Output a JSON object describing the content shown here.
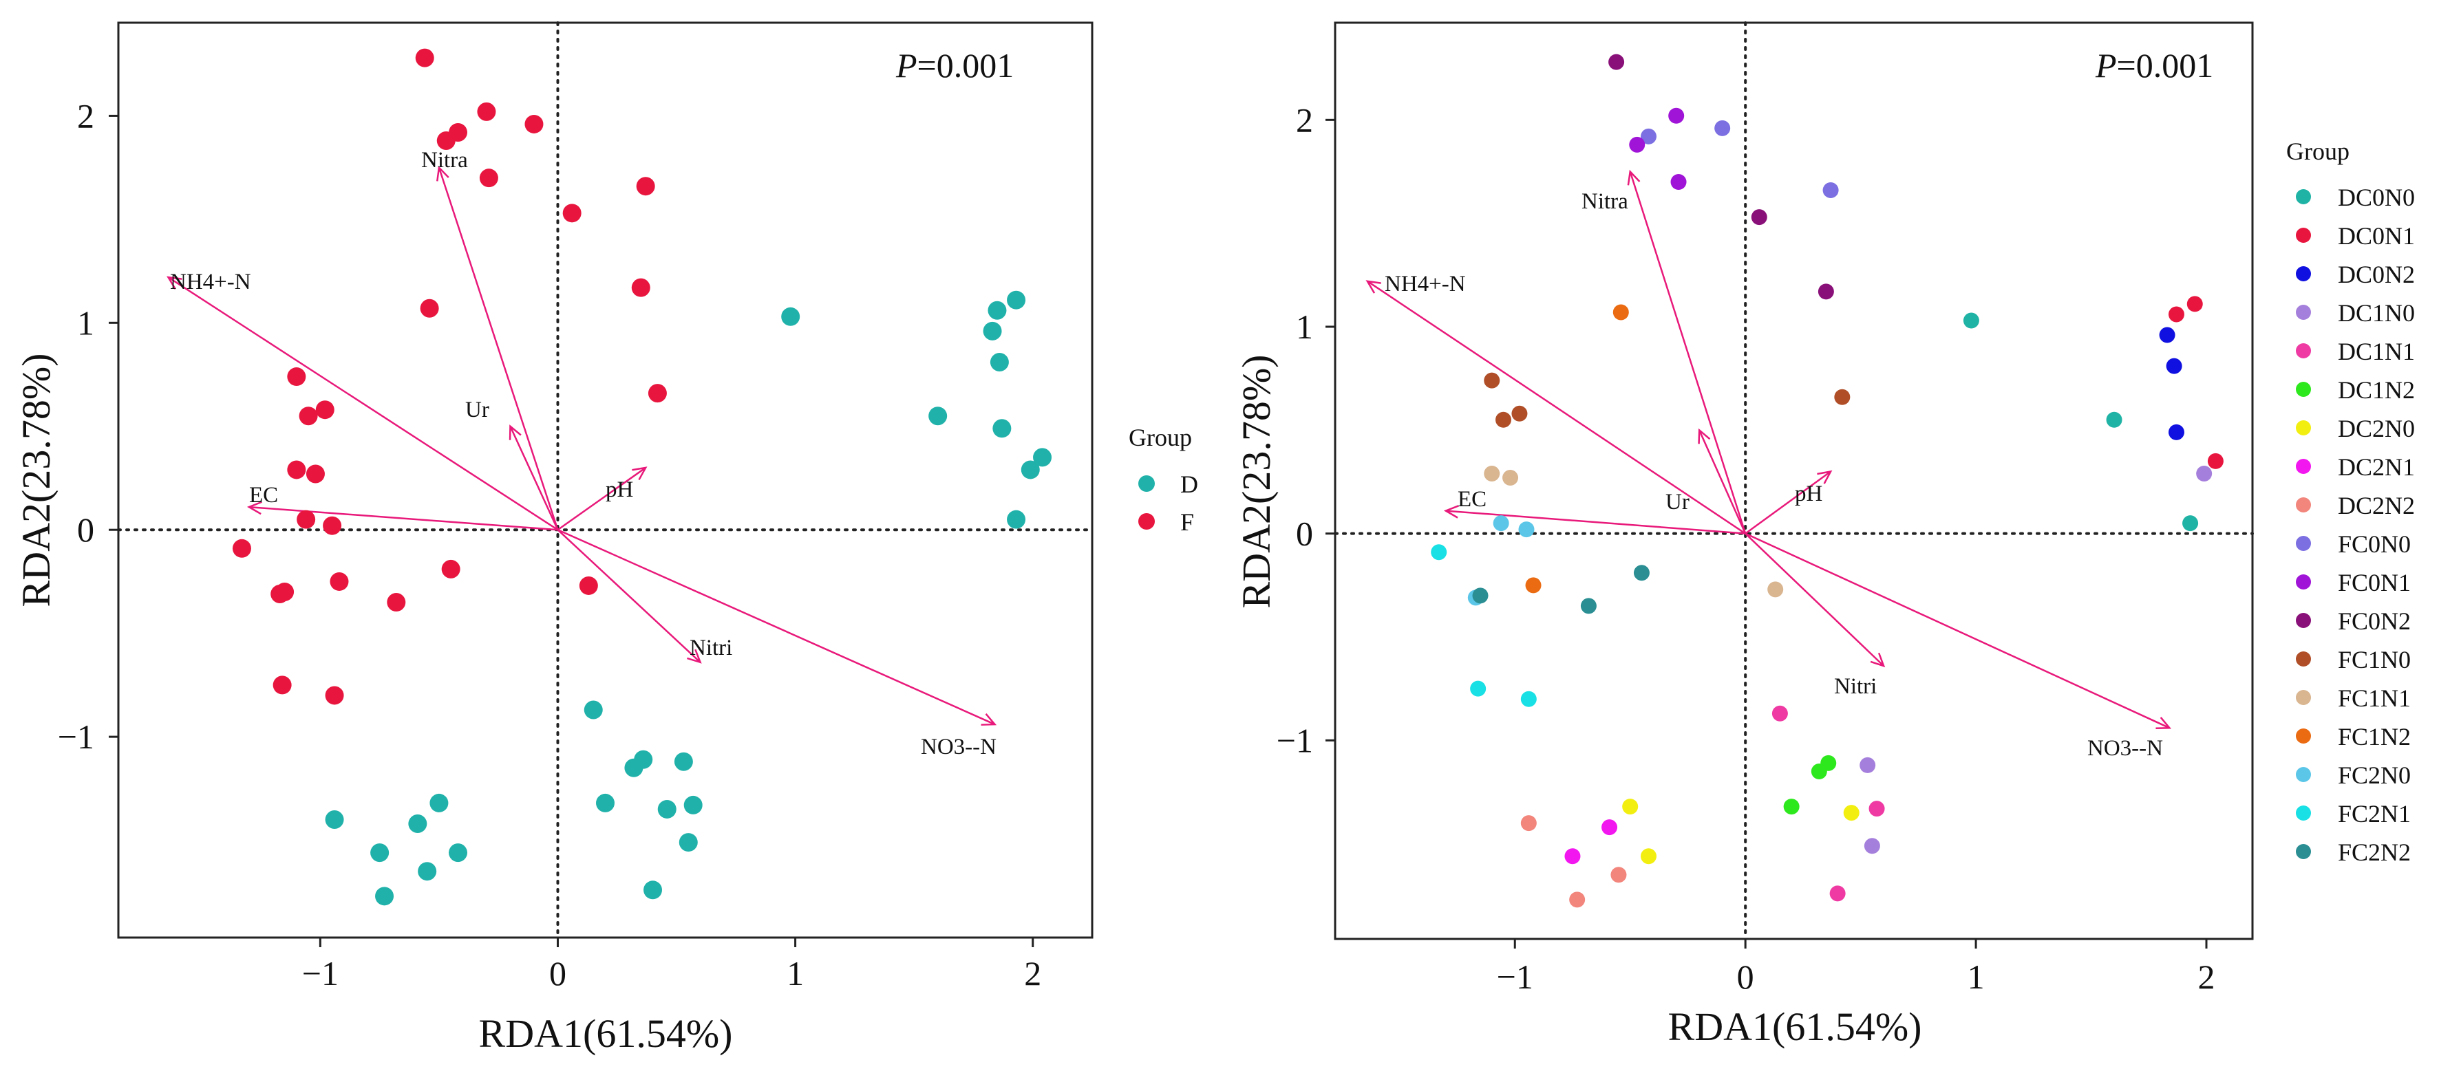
{
  "chart_data": [
    {
      "type": "scatter",
      "subtype": "RDA biplot",
      "title": "",
      "xlabel": "RDA1(61.54%)",
      "ylabel": "RDA2(23.78%)",
      "p_label_italic": "P",
      "p_label_rest": "=0.001",
      "xlim": [
        -1.85,
        2.25
      ],
      "ylim": [
        -1.97,
        2.45
      ],
      "xticks": [
        -1,
        0,
        1,
        2
      ],
      "yticks": [
        -1,
        0,
        1,
        2
      ],
      "xtick_labels": [
        "−1",
        "0",
        "1",
        "2"
      ],
      "ytick_labels": [
        "−1",
        "0",
        "1",
        "2"
      ],
      "grid": false,
      "zero_lines": "dotted",
      "legend": {
        "title": "Group",
        "position": "right",
        "entries": [
          {
            "name": "D",
            "color": "#20b2aa"
          },
          {
            "name": "F",
            "color": "#e8163f"
          }
        ]
      },
      "env_vectors": [
        {
          "name": "NH4+-N",
          "x": -1.64,
          "y": 1.22
        },
        {
          "name": "Nitra",
          "x": -0.5,
          "y": 1.75
        },
        {
          "name": "Ur",
          "x": -0.2,
          "y": 0.5
        },
        {
          "name": "pH",
          "x": 0.37,
          "y": 0.3
        },
        {
          "name": "EC",
          "x": -1.3,
          "y": 0.11
        },
        {
          "name": "Nitri",
          "x": 0.6,
          "y": -0.64
        },
        {
          "name": "NO3--N",
          "x": 1.84,
          "y": -0.94
        }
      ],
      "env_label_text": [
        "NH4+-N",
        "Nitra",
        "Ur",
        "pH",
        "EC",
        "Nitri",
        "NO3--N"
      ],
      "series": [
        {
          "name": "D",
          "color": "#20b2aa",
          "points": [
            [
              0.98,
              1.03
            ],
            [
              1.6,
              0.55
            ],
            [
              1.83,
              0.96
            ],
            [
              1.85,
              1.06
            ],
            [
              1.93,
              1.11
            ],
            [
              1.86,
              0.81
            ],
            [
              1.87,
              0.49
            ],
            [
              1.99,
              0.29
            ],
            [
              2.04,
              0.35
            ],
            [
              1.93,
              0.05
            ],
            [
              0.15,
              -0.87
            ],
            [
              0.2,
              -1.32
            ],
            [
              0.32,
              -1.15
            ],
            [
              0.36,
              -1.11
            ],
            [
              0.46,
              -1.35
            ],
            [
              0.53,
              -1.12
            ],
            [
              0.57,
              -1.33
            ],
            [
              0.55,
              -1.51
            ],
            [
              0.4,
              -1.74
            ],
            [
              -0.94,
              -1.4
            ],
            [
              -0.59,
              -1.42
            ],
            [
              -0.5,
              -1.32
            ],
            [
              -0.42,
              -1.56
            ],
            [
              -0.55,
              -1.65
            ],
            [
              -0.75,
              -1.56
            ],
            [
              -0.73,
              -1.77
            ]
          ]
        },
        {
          "name": "F",
          "color": "#e8163f",
          "points": [
            [
              -0.56,
              2.28
            ],
            [
              -0.47,
              1.88
            ],
            [
              -0.42,
              1.92
            ],
            [
              -0.3,
              2.02
            ],
            [
              -0.1,
              1.96
            ],
            [
              -0.29,
              1.7
            ],
            [
              0.06,
              1.53
            ],
            [
              0.37,
              1.66
            ],
            [
              0.35,
              1.17
            ],
            [
              0.42,
              0.66
            ],
            [
              0.13,
              -0.27
            ],
            [
              -0.54,
              1.07
            ],
            [
              -1.1,
              0.74
            ],
            [
              -1.05,
              0.55
            ],
            [
              -0.98,
              0.58
            ],
            [
              -1.1,
              0.29
            ],
            [
              -1.02,
              0.27
            ],
            [
              -1.06,
              0.05
            ],
            [
              -0.95,
              0.02
            ],
            [
              -1.33,
              -0.09
            ],
            [
              -1.17,
              -0.31
            ],
            [
              -1.15,
              -0.3
            ],
            [
              -0.92,
              -0.25
            ],
            [
              -0.68,
              -0.35
            ],
            [
              -0.45,
              -0.19
            ],
            [
              -1.16,
              -0.75
            ],
            [
              -0.94,
              -0.8
            ]
          ]
        }
      ]
    },
    {
      "type": "scatter",
      "subtype": "RDA biplot",
      "title": "",
      "xlabel": "RDA1(61.54%)",
      "ylabel": "RDA2(23.78%)",
      "p_label_italic": "P",
      "p_label_rest": "=0.001",
      "xlim": [
        -1.78,
        2.2
      ],
      "ylim": [
        -1.96,
        2.47
      ],
      "xticks": [
        -1,
        0,
        1,
        2
      ],
      "yticks": [
        -1,
        0,
        1,
        2
      ],
      "xtick_labels": [
        "−1",
        "0",
        "1",
        "2"
      ],
      "ytick_labels": [
        "−1",
        "0",
        "1",
        "2"
      ],
      "grid": false,
      "zero_lines": "dotted",
      "env_vectors": [
        {
          "name": "NH4+-N",
          "x": -1.64,
          "y": 1.22
        },
        {
          "name": "Nitra",
          "x": -0.5,
          "y": 1.75
        },
        {
          "name": "Ur",
          "x": -0.2,
          "y": 0.5
        },
        {
          "name": "pH",
          "x": 0.37,
          "y": 0.3
        },
        {
          "name": "EC",
          "x": -1.3,
          "y": 0.11
        },
        {
          "name": "Nitri",
          "x": 0.6,
          "y": -0.64
        },
        {
          "name": "NO3--N",
          "x": 1.84,
          "y": -0.94
        }
      ],
      "env_label_text": [
        "NH4+-N",
        "Nitra",
        "Ur",
        "pH",
        "EC",
        "Nitri",
        "NO3--N"
      ],
      "legend": {
        "title": "Group",
        "position": "right"
      },
      "series": [
        {
          "name": "DC0N0",
          "color": "#1fb3a5",
          "points": [
            [
              0.98,
              1.03
            ],
            [
              1.6,
              0.55
            ],
            [
              1.93,
              0.05
            ]
          ]
        },
        {
          "name": "DC0N1",
          "color": "#e8163f",
          "points": [
            [
              1.87,
              1.06
            ],
            [
              1.95,
              1.11
            ],
            [
              2.04,
              0.35
            ]
          ]
        },
        {
          "name": "DC0N2",
          "color": "#1010e0",
          "points": [
            [
              1.83,
              0.96
            ],
            [
              1.86,
              0.81
            ],
            [
              1.87,
              0.49
            ]
          ]
        },
        {
          "name": "DC1N0",
          "color": "#a57fdc",
          "points": [
            [
              1.99,
              0.29
            ],
            [
              0.53,
              -1.12
            ],
            [
              0.55,
              -1.51
            ]
          ]
        },
        {
          "name": "DC1N1",
          "color": "#ef3aa3",
          "points": [
            [
              0.15,
              -0.87
            ],
            [
              0.57,
              -1.33
            ],
            [
              0.4,
              -1.74
            ]
          ]
        },
        {
          "name": "DC1N2",
          "color": "#2ee81e",
          "points": [
            [
              0.2,
              -1.32
            ],
            [
              0.32,
              -1.15
            ],
            [
              0.36,
              -1.11
            ]
          ]
        },
        {
          "name": "DC2N0",
          "color": "#f2ef10",
          "points": [
            [
              0.46,
              -1.35
            ],
            [
              -0.5,
              -1.32
            ],
            [
              -0.42,
              -1.56
            ]
          ]
        },
        {
          "name": "DC2N1",
          "color": "#f216ef",
          "points": [
            [
              -0.59,
              -1.42
            ],
            [
              -0.75,
              -1.56
            ]
          ]
        },
        {
          "name": "DC2N2",
          "color": "#f2857c",
          "points": [
            [
              -0.94,
              -1.4
            ],
            [
              -0.55,
              -1.65
            ],
            [
              -0.73,
              -1.77
            ]
          ]
        },
        {
          "name": "FC0N0",
          "color": "#7b6fe2",
          "points": [
            [
              -0.42,
              1.92
            ],
            [
              -0.1,
              1.96
            ],
            [
              0.37,
              1.66
            ]
          ]
        },
        {
          "name": "FC0N1",
          "color": "#a014d8",
          "points": [
            [
              -0.47,
              1.88
            ],
            [
              -0.3,
              2.02
            ],
            [
              -0.29,
              1.7
            ]
          ]
        },
        {
          "name": "FC0N2",
          "color": "#8a1079",
          "points": [
            [
              -0.56,
              2.28
            ],
            [
              0.06,
              1.53
            ],
            [
              0.35,
              1.17
            ]
          ]
        },
        {
          "name": "FC1N0",
          "color": "#b04e28",
          "points": [
            [
              0.42,
              0.66
            ],
            [
              -1.05,
              0.55
            ],
            [
              -0.98,
              0.58
            ],
            [
              -1.1,
              0.74
            ]
          ]
        },
        {
          "name": "FC1N1",
          "color": "#d9b590",
          "points": [
            [
              0.13,
              -0.27
            ],
            [
              -1.1,
              0.29
            ],
            [
              -1.02,
              0.27
            ]
          ]
        },
        {
          "name": "FC1N2",
          "color": "#ea6b12",
          "points": [
            [
              -0.54,
              1.07
            ],
            [
              -0.92,
              -0.25
            ]
          ]
        },
        {
          "name": "FC2N0",
          "color": "#5cc6e8",
          "points": [
            [
              -1.06,
              0.05
            ],
            [
              -0.95,
              0.02
            ],
            [
              -1.17,
              -0.31
            ]
          ]
        },
        {
          "name": "FC2N1",
          "color": "#18e0e4",
          "points": [
            [
              -1.33,
              -0.09
            ],
            [
              -1.16,
              -0.75
            ],
            [
              -0.94,
              -0.8
            ]
          ]
        },
        {
          "name": "FC2N2",
          "color": "#2a8e93",
          "points": [
            [
              -1.15,
              -0.3
            ],
            [
              -0.68,
              -0.35
            ],
            [
              -0.45,
              -0.19
            ]
          ]
        }
      ]
    }
  ],
  "colors": {
    "arrow": "#e8197a",
    "axis": "#222222",
    "zero_line": "#222222"
  }
}
